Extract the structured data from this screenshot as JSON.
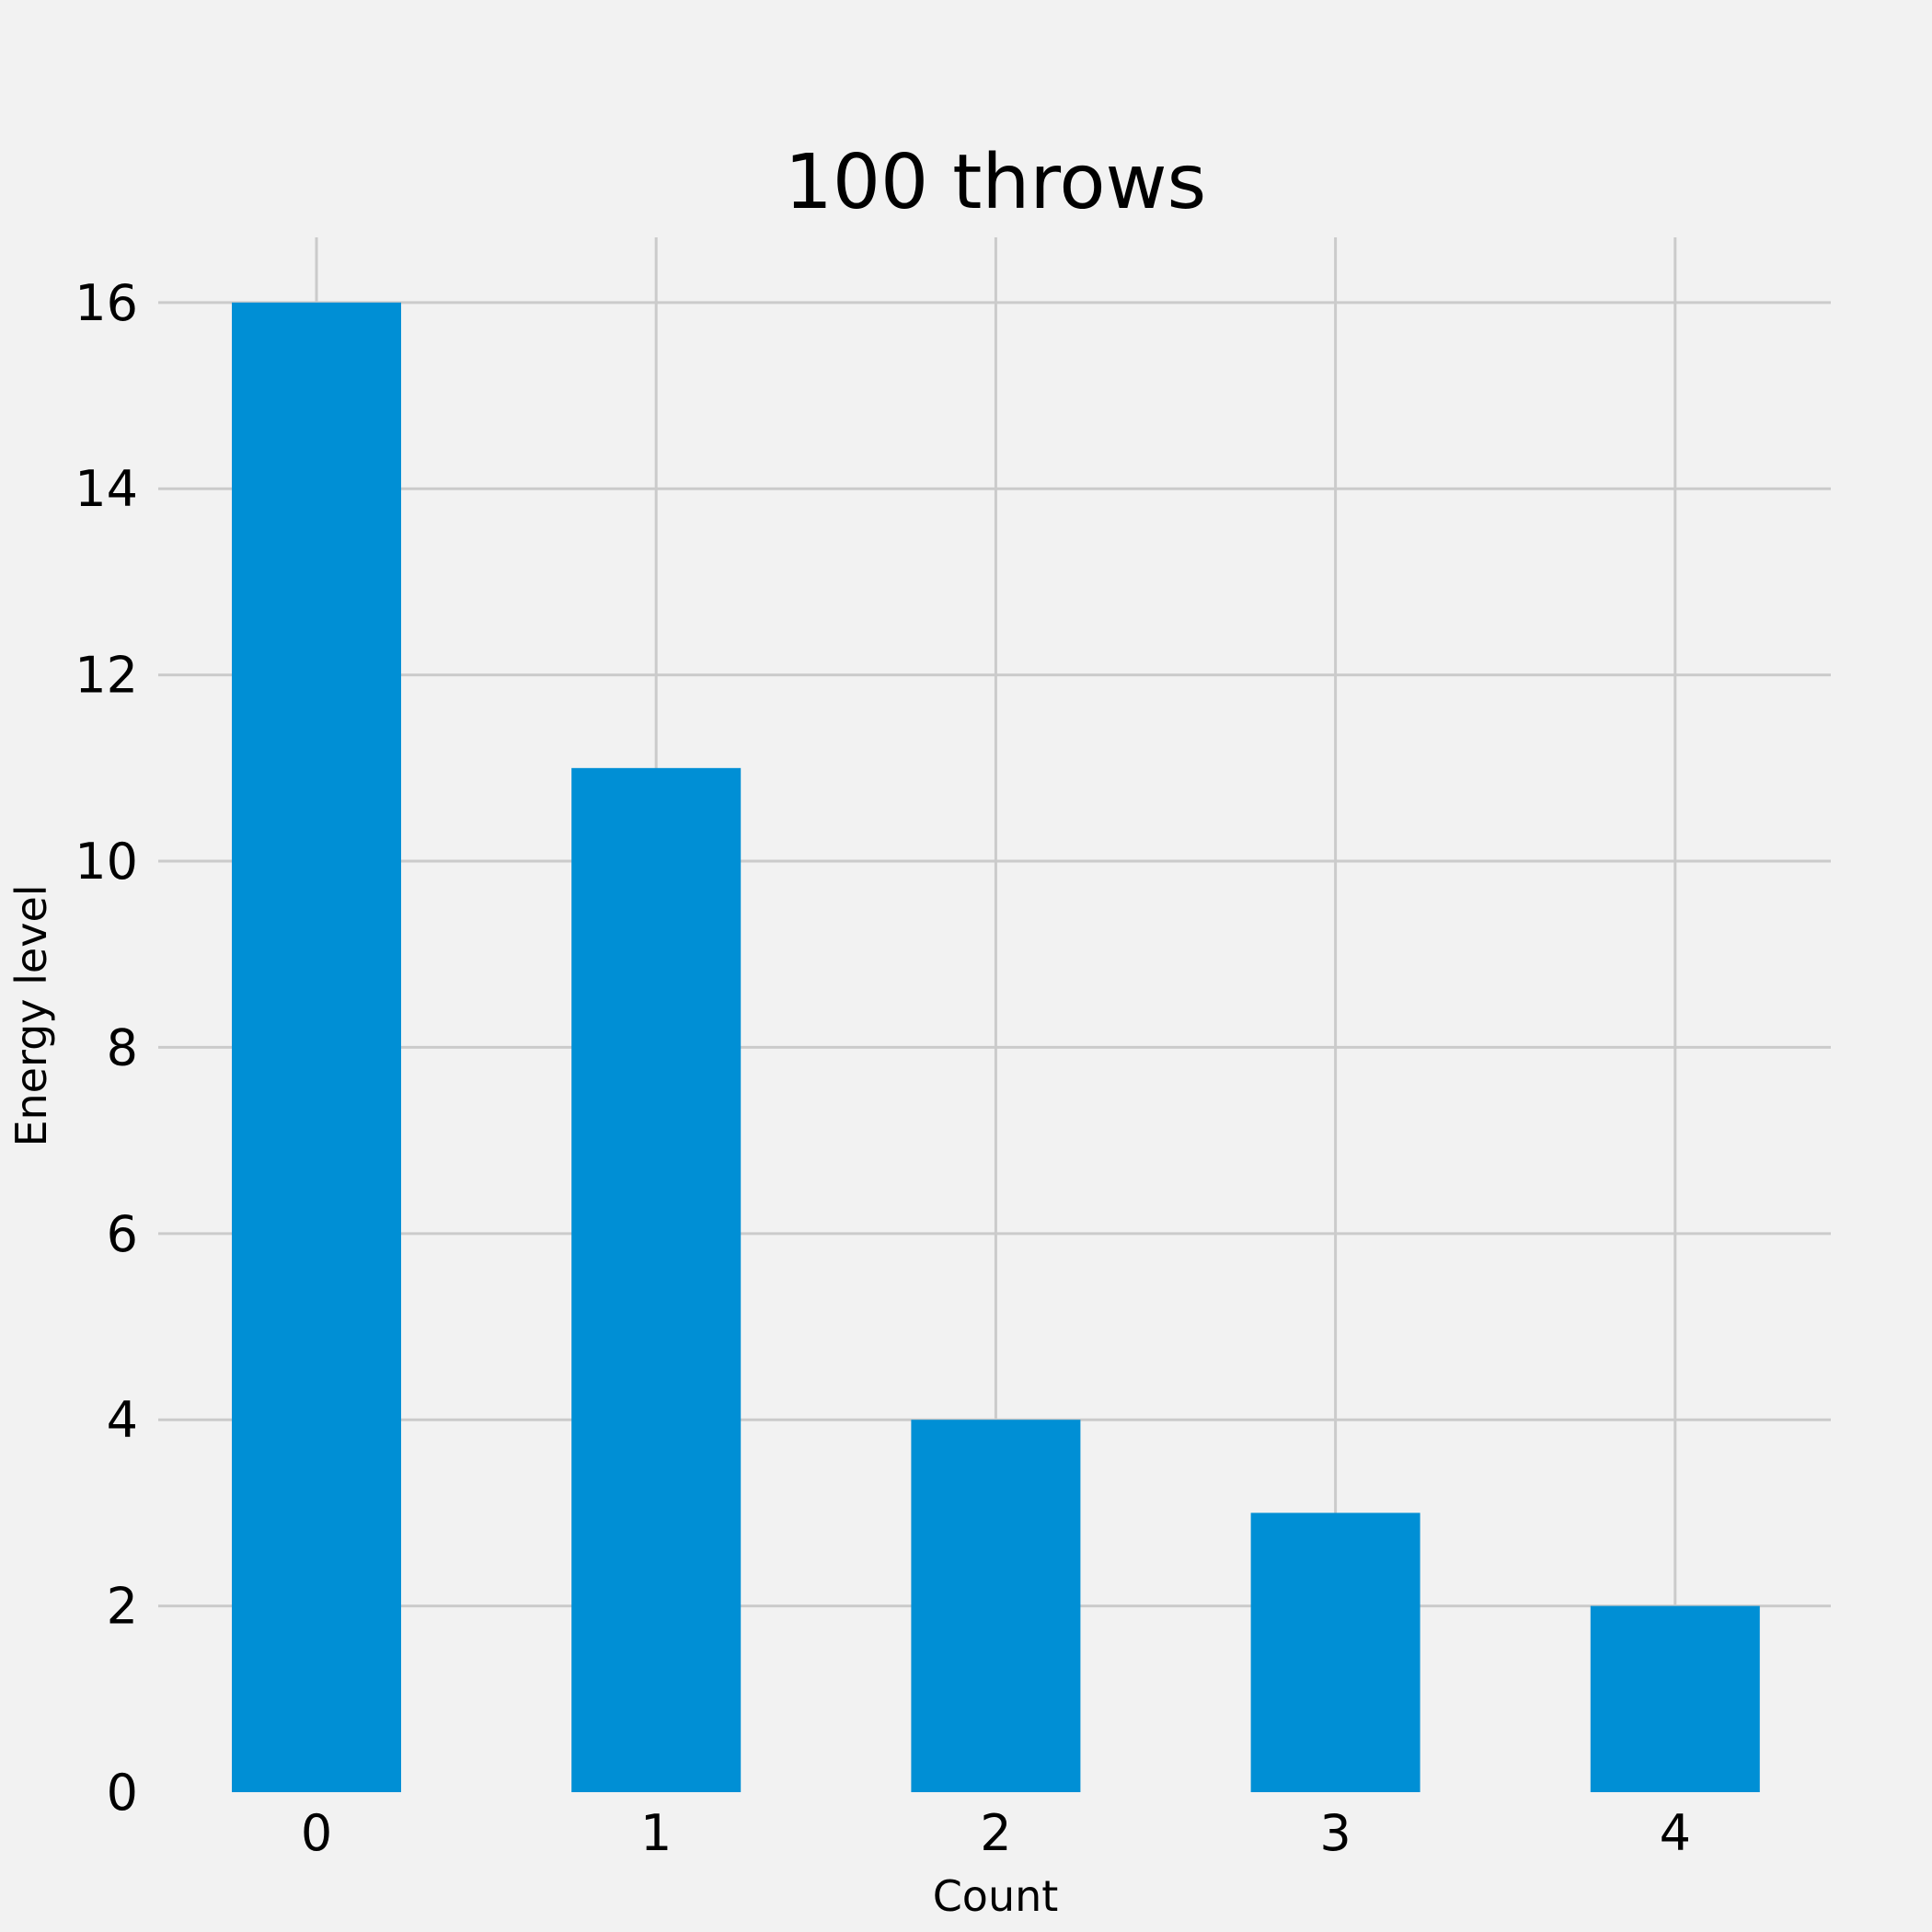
{
  "chart_data": {
    "type": "bar",
    "title": "100 throws",
    "xlabel": "Count",
    "ylabel": "Energy level",
    "categories": [
      "0",
      "1",
      "2",
      "3",
      "4"
    ],
    "values": [
      16,
      11,
      4,
      3,
      2
    ],
    "ylim": [
      0,
      16.7
    ],
    "yticks": [
      "0",
      "2",
      "4",
      "6",
      "8",
      "10",
      "12",
      "14",
      "16"
    ],
    "grid": true,
    "legend": "none",
    "colors": {
      "bar": "#008fd5",
      "background": "#f2f2f2",
      "grid": "#cbcbcb",
      "text": "#000000"
    }
  }
}
